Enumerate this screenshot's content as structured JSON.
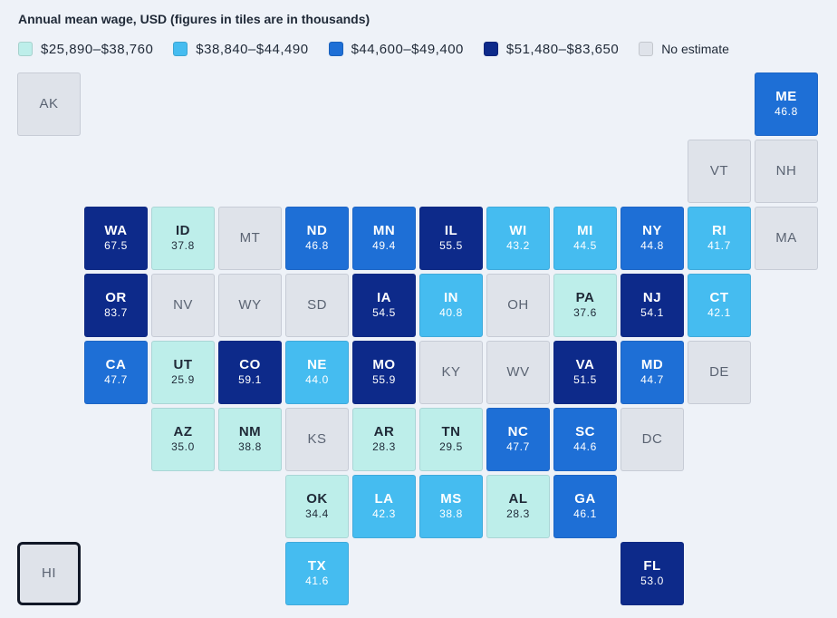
{
  "title": "Annual mean wage, USD (figures in tiles are in thousands)",
  "colors": {
    "bin1": "#bdeeea",
    "bin2": "#45bcf0",
    "bin3": "#1e6fd6",
    "bin4": "#0d2a8a",
    "none": "#dfe3ea",
    "dark_text": "#1f2937",
    "light_text": "#ffffff",
    "none_text": "#5b6473"
  },
  "legend": [
    {
      "label": "$25,890–$38,760",
      "bin": "bin1"
    },
    {
      "label": "$38,840–$44,490",
      "bin": "bin2"
    },
    {
      "label": "$44,600–$49,400",
      "bin": "bin3"
    },
    {
      "label": "$51,480–$83,650",
      "bin": "bin4"
    },
    {
      "label": "No estimate",
      "bin": "none"
    }
  ],
  "selected_state": "HI",
  "states": [
    {
      "abbr": "AK",
      "value": null,
      "bin": "none",
      "row": 0,
      "col": 0
    },
    {
      "abbr": "ME",
      "value": "46.8",
      "bin": "bin3",
      "row": 0,
      "col": 11
    },
    {
      "abbr": "VT",
      "value": null,
      "bin": "none",
      "row": 1,
      "col": 10
    },
    {
      "abbr": "NH",
      "value": null,
      "bin": "none",
      "row": 1,
      "col": 11
    },
    {
      "abbr": "WA",
      "value": "67.5",
      "bin": "bin4",
      "row": 2,
      "col": 1
    },
    {
      "abbr": "ID",
      "value": "37.8",
      "bin": "bin1",
      "row": 2,
      "col": 2
    },
    {
      "abbr": "MT",
      "value": null,
      "bin": "none",
      "row": 2,
      "col": 3
    },
    {
      "abbr": "ND",
      "value": "46.8",
      "bin": "bin3",
      "row": 2,
      "col": 4
    },
    {
      "abbr": "MN",
      "value": "49.4",
      "bin": "bin3",
      "row": 2,
      "col": 5
    },
    {
      "abbr": "IL",
      "value": "55.5",
      "bin": "bin4",
      "row": 2,
      "col": 6
    },
    {
      "abbr": "WI",
      "value": "43.2",
      "bin": "bin2",
      "row": 2,
      "col": 7
    },
    {
      "abbr": "MI",
      "value": "44.5",
      "bin": "bin2",
      "row": 2,
      "col": 8
    },
    {
      "abbr": "NY",
      "value": "44.8",
      "bin": "bin3",
      "row": 2,
      "col": 9
    },
    {
      "abbr": "RI",
      "value": "41.7",
      "bin": "bin2",
      "row": 2,
      "col": 10
    },
    {
      "abbr": "MA",
      "value": null,
      "bin": "none",
      "row": 2,
      "col": 11
    },
    {
      "abbr": "OR",
      "value": "83.7",
      "bin": "bin4",
      "row": 3,
      "col": 1
    },
    {
      "abbr": "NV",
      "value": null,
      "bin": "none",
      "row": 3,
      "col": 2
    },
    {
      "abbr": "WY",
      "value": null,
      "bin": "none",
      "row": 3,
      "col": 3
    },
    {
      "abbr": "SD",
      "value": null,
      "bin": "none",
      "row": 3,
      "col": 4
    },
    {
      "abbr": "IA",
      "value": "54.5",
      "bin": "bin4",
      "row": 3,
      "col": 5
    },
    {
      "abbr": "IN",
      "value": "40.8",
      "bin": "bin2",
      "row": 3,
      "col": 6
    },
    {
      "abbr": "OH",
      "value": null,
      "bin": "none",
      "row": 3,
      "col": 7
    },
    {
      "abbr": "PA",
      "value": "37.6",
      "bin": "bin1",
      "row": 3,
      "col": 8
    },
    {
      "abbr": "NJ",
      "value": "54.1",
      "bin": "bin4",
      "row": 3,
      "col": 9
    },
    {
      "abbr": "CT",
      "value": "42.1",
      "bin": "bin2",
      "row": 3,
      "col": 10
    },
    {
      "abbr": "CA",
      "value": "47.7",
      "bin": "bin3",
      "row": 4,
      "col": 1
    },
    {
      "abbr": "UT",
      "value": "25.9",
      "bin": "bin1",
      "row": 4,
      "col": 2
    },
    {
      "abbr": "CO",
      "value": "59.1",
      "bin": "bin4",
      "row": 4,
      "col": 3
    },
    {
      "abbr": "NE",
      "value": "44.0",
      "bin": "bin2",
      "row": 4,
      "col": 4
    },
    {
      "abbr": "MO",
      "value": "55.9",
      "bin": "bin4",
      "row": 4,
      "col": 5
    },
    {
      "abbr": "KY",
      "value": null,
      "bin": "none",
      "row": 4,
      "col": 6
    },
    {
      "abbr": "WV",
      "value": null,
      "bin": "none",
      "row": 4,
      "col": 7
    },
    {
      "abbr": "VA",
      "value": "51.5",
      "bin": "bin4",
      "row": 4,
      "col": 8
    },
    {
      "abbr": "MD",
      "value": "44.7",
      "bin": "bin3",
      "row": 4,
      "col": 9
    },
    {
      "abbr": "DE",
      "value": null,
      "bin": "none",
      "row": 4,
      "col": 10
    },
    {
      "abbr": "AZ",
      "value": "35.0",
      "bin": "bin1",
      "row": 5,
      "col": 2
    },
    {
      "abbr": "NM",
      "value": "38.8",
      "bin": "bin1",
      "row": 5,
      "col": 3
    },
    {
      "abbr": "KS",
      "value": null,
      "bin": "none",
      "row": 5,
      "col": 4
    },
    {
      "abbr": "AR",
      "value": "28.3",
      "bin": "bin1",
      "row": 5,
      "col": 5
    },
    {
      "abbr": "TN",
      "value": "29.5",
      "bin": "bin1",
      "row": 5,
      "col": 6
    },
    {
      "abbr": "NC",
      "value": "47.7",
      "bin": "bin3",
      "row": 5,
      "col": 7
    },
    {
      "abbr": "SC",
      "value": "44.6",
      "bin": "bin3",
      "row": 5,
      "col": 8
    },
    {
      "abbr": "DC",
      "value": null,
      "bin": "none",
      "row": 5,
      "col": 9
    },
    {
      "abbr": "OK",
      "value": "34.4",
      "bin": "bin1",
      "row": 6,
      "col": 4
    },
    {
      "abbr": "LA",
      "value": "42.3",
      "bin": "bin2",
      "row": 6,
      "col": 5
    },
    {
      "abbr": "MS",
      "value": "38.8",
      "bin": "bin2",
      "row": 6,
      "col": 6
    },
    {
      "abbr": "AL",
      "value": "28.3",
      "bin": "bin1",
      "row": 6,
      "col": 7
    },
    {
      "abbr": "GA",
      "value": "46.1",
      "bin": "bin3",
      "row": 6,
      "col": 8
    },
    {
      "abbr": "HI",
      "value": null,
      "bin": "none",
      "row": 7,
      "col": 0
    },
    {
      "abbr": "TX",
      "value": "41.6",
      "bin": "bin2",
      "row": 7,
      "col": 4
    },
    {
      "abbr": "FL",
      "value": "53.0",
      "bin": "bin4",
      "row": 7,
      "col": 9
    }
  ]
}
